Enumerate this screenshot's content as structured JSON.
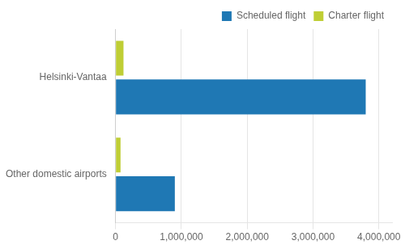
{
  "chart_data": {
    "type": "bar",
    "orientation": "horizontal",
    "categories": [
      "Helsinki-Vantaa",
      "Other domestic airports"
    ],
    "series": [
      {
        "name": "Scheduled flight",
        "color": "#1F78B4",
        "values": [
          3800000,
          900000
        ]
      },
      {
        "name": "Charter flight",
        "color": "#BFCE35",
        "values": [
          120000,
          75000
        ]
      }
    ],
    "xlim": [
      0,
      4200000
    ],
    "xticks": [
      0,
      {
        "value": 1000000,
        "label": "1,000,000"
      },
      {
        "value": 2000000,
        "label": "2,000,000"
      },
      {
        "value": 3000000,
        "label": "3,000,000"
      },
      {
        "value": 4000000,
        "label": "4,000,000"
      }
    ],
    "grid": "x",
    "legend": "upper right"
  }
}
